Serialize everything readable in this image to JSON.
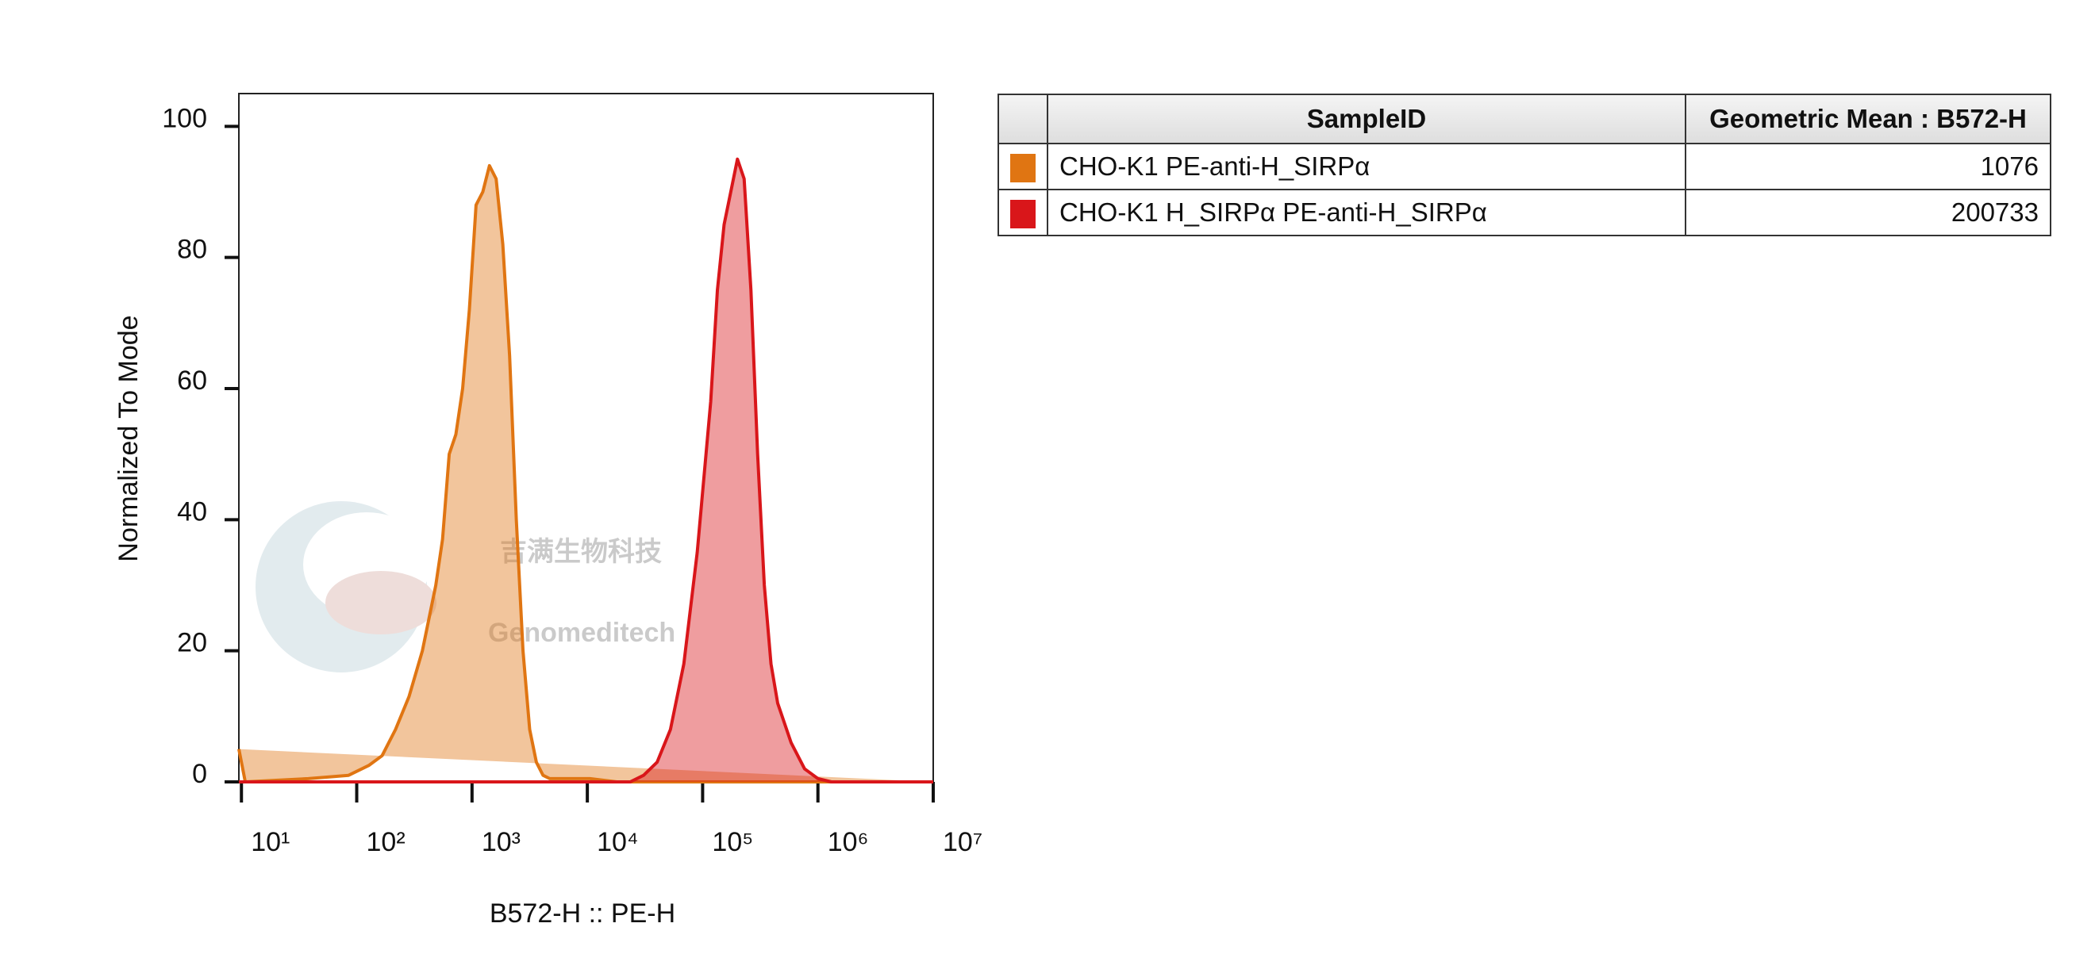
{
  "chart_data": {
    "type": "histogram-overlay",
    "x_label": "B572-H :: PE-H",
    "y_label": "Normalized To Mode",
    "xscale": "log",
    "xlim": [
      9.5,
      10000000
    ],
    "xticks": [
      {
        "value": 10,
        "label": "10¹"
      },
      {
        "value": 100,
        "label": "10²"
      },
      {
        "value": 1000,
        "label": "10³"
      },
      {
        "value": 10000,
        "label": "10⁴"
      },
      {
        "value": 100000,
        "label": "10⁵"
      },
      {
        "value": 1000000,
        "label": "10⁶"
      },
      {
        "value": 10000000,
        "label": "10⁷"
      }
    ],
    "ylim": [
      0,
      105
    ],
    "yticks": [
      0,
      20,
      40,
      60,
      80,
      100
    ],
    "series": [
      {
        "name": "CHO-K1 PE-anti-H_SIRPα",
        "color": "#e07512",
        "x": [
          9.5,
          10.8,
          38,
          85,
          127,
          166,
          217,
          284,
          371,
          485,
          555,
          634,
          724,
          829,
          948,
          1084,
          1240,
          1416,
          1618,
          1849,
          2118,
          2421,
          2767,
          3162,
          3614,
          4130,
          4720,
          10540,
          18030,
          10000000
        ],
        "values": [
          5,
          0,
          0.5,
          1,
          2.5,
          4,
          8,
          13,
          20,
          30,
          37,
          50,
          53,
          60,
          72,
          88,
          90,
          94,
          92,
          82,
          65,
          40,
          20,
          8,
          3,
          1,
          0.5,
          0.5,
          0,
          0
        ]
      },
      {
        "name": "CHO-K1 H_SIRPα PE-anti-H_SIRPα",
        "color": "#d9161a",
        "x": [
          9.5,
          23550,
          30770,
          40270,
          52600,
          68710,
          89750,
          117500,
          134300,
          153500,
          175400,
          200400,
          229100,
          262400,
          299900,
          342800,
          391700,
          447700,
          584800,
          765600,
          1000000,
          1306000,
          10000000
        ],
        "values": [
          0,
          0,
          1,
          3,
          8,
          18,
          35,
          58,
          75,
          85,
          90,
          95,
          92,
          75,
          50,
          30,
          18,
          12,
          6,
          2,
          0.5,
          0,
          0
        ]
      }
    ]
  },
  "watermark": {
    "cn": "吉满生物科技",
    "en": "Genomeditech"
  },
  "table": {
    "header": [
      "SampleID",
      "Geometric Mean : B572-H"
    ],
    "rows": [
      {
        "color": "#e07512",
        "sample": "CHO-K1 PE-anti-H_SIRPα",
        "value": "1076"
      },
      {
        "color": "#d9161a",
        "sample": "CHO-K1 H_SIRPα PE-anti-H_SIRPα",
        "value": "200733"
      }
    ]
  }
}
